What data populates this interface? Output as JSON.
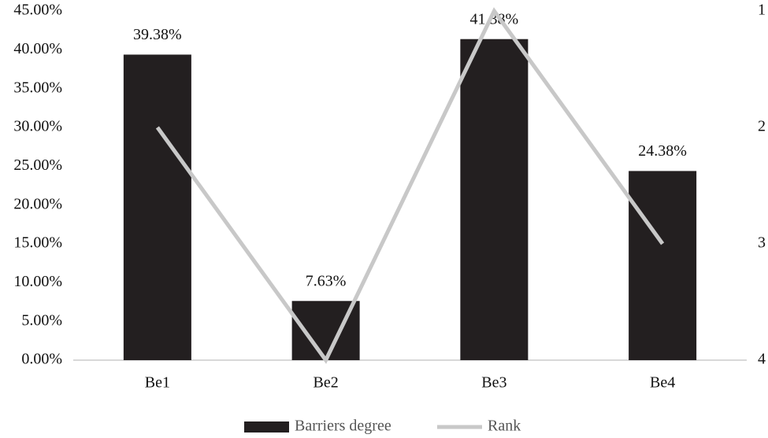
{
  "chart_data": {
    "type": "bar",
    "categories": [
      "Be1",
      "Be2",
      "Be3",
      "Be4"
    ],
    "series": [
      {
        "name": "Barriers degree",
        "color": "#231f20",
        "values": [
          39.38,
          7.63,
          41.38,
          24.38
        ],
        "value_labels": [
          "39.38%",
          "7.63%",
          "41.38%",
          "24.38%"
        ]
      },
      {
        "name": "Rank",
        "type": "line",
        "axis": "y2",
        "color": "#c8c8c8",
        "values": [
          2,
          4,
          1,
          3
        ]
      }
    ],
    "ylim": [
      0,
      45
    ],
    "yticks": [
      {
        "value": 0,
        "label": "0.00%"
      },
      {
        "value": 5,
        "label": "5.00%"
      },
      {
        "value": 10,
        "label": "10.00%"
      },
      {
        "value": 15,
        "label": "15.00%"
      },
      {
        "value": 20,
        "label": "20.00%"
      },
      {
        "value": 25,
        "label": "25.00%"
      },
      {
        "value": 30,
        "label": "30.00%"
      },
      {
        "value": 35,
        "label": "35.00%"
      },
      {
        "value": 40,
        "label": "40.00%"
      },
      {
        "value": 45,
        "label": "45.00%"
      }
    ],
    "y2lim": [
      4,
      1
    ],
    "y2ticks": [
      1,
      2,
      3,
      4
    ],
    "grid": false,
    "legend": "bottom"
  }
}
